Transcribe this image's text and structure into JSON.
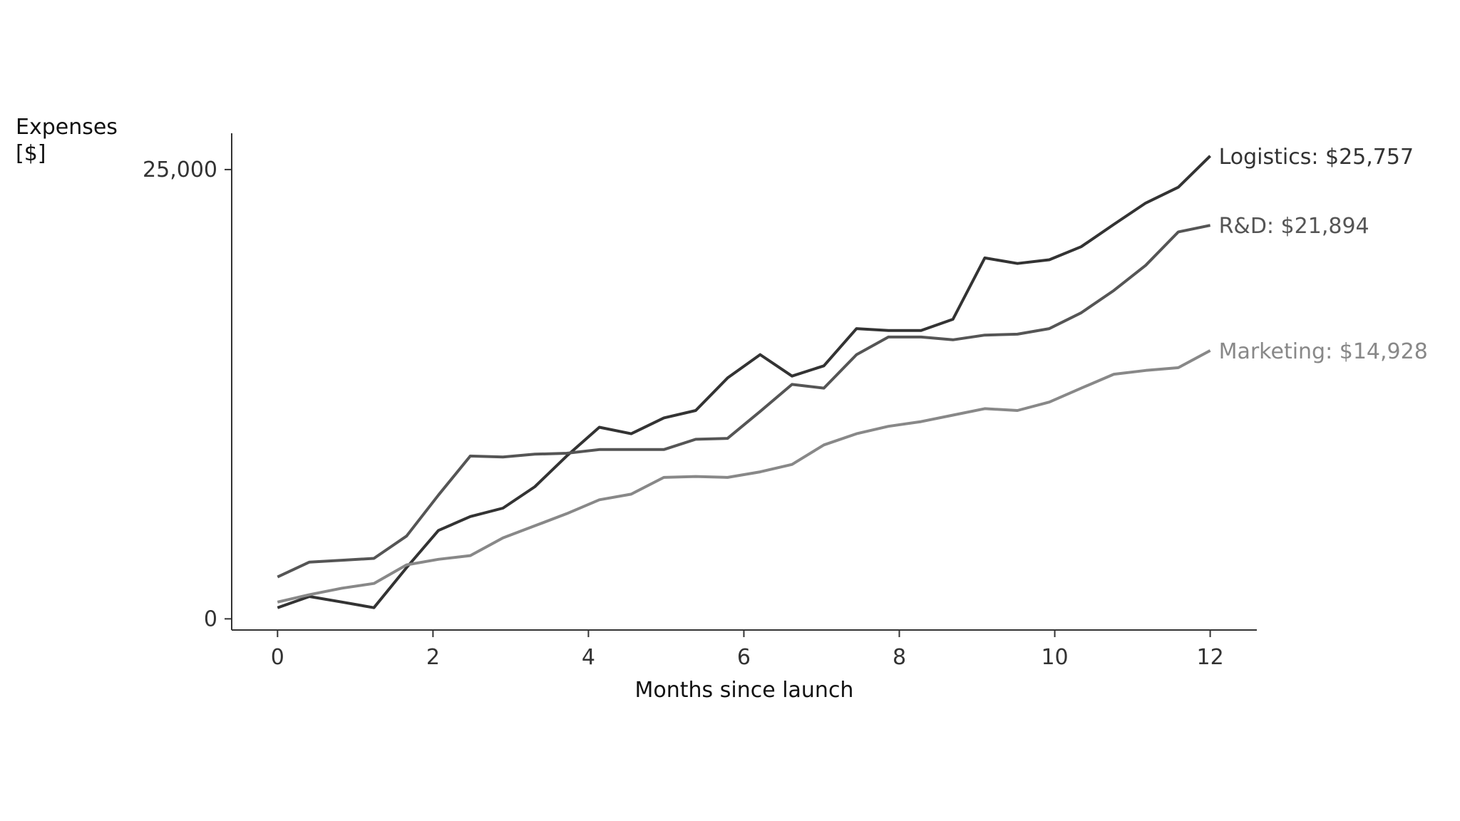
{
  "chart_data": {
    "type": "line",
    "x_label": "Months since launch",
    "y_label": "Expenses [$]",
    "x": [
      0,
      0.41,
      0.83,
      1.24,
      1.66,
      2.07,
      2.48,
      2.9,
      3.31,
      3.72,
      4.14,
      4.55,
      4.97,
      5.38,
      5.79,
      6.21,
      6.62,
      7.03,
      7.45,
      7.86,
      8.28,
      8.69,
      9.1,
      9.52,
      9.93,
      10.34,
      10.76,
      11.17,
      11.59,
      12
    ],
    "series": [
      {
        "name": "Logistics",
        "color": "#333333",
        "label": "Logistics: $25,757",
        "values": [
          621,
          1242,
          932,
          621,
          2847,
          4917,
          5694,
          6159,
          7350,
          9058,
          10663,
          10300,
          11180,
          11594,
          13406,
          14700,
          13510,
          14079,
          16149,
          16046,
          16046,
          16667,
          20083,
          19772,
          19979,
          20704,
          21946,
          23137,
          24017,
          25757
        ]
      },
      {
        "name": "R&D",
        "color": "#555555",
        "label": "R&D: $21,894",
        "values": [
          2329,
          3157,
          3261,
          3364,
          4607,
          6884,
          9058,
          9006,
          9162,
          9213,
          9420,
          9420,
          9420,
          9990,
          10041,
          11542,
          13044,
          12837,
          14700,
          15683,
          15683,
          15528,
          15787,
          15839,
          16149,
          17029,
          18271,
          19669,
          21532,
          21894
        ]
      },
      {
        "name": "Marketing",
        "color": "#888888",
        "label": "Marketing: $14,928",
        "values": [
          932,
          1346,
          1708,
          1967,
          3002,
          3313,
          3520,
          4503,
          5176,
          5849,
          6625,
          6936,
          7868,
          7919,
          7868,
          8178,
          8592,
          9679,
          10300,
          10714,
          10973,
          11335,
          11698,
          11594,
          12060,
          12836,
          13613,
          13820,
          13975,
          14928
        ]
      }
    ],
    "xlim": [
      -0.59,
      12.6
    ],
    "xticks": [
      0,
      2,
      4,
      6,
      8,
      10,
      12
    ],
    "ylim": [
      -621,
      27019
    ],
    "yticks": [
      0,
      {
        "value": 25000,
        "label": "25,000"
      }
    ],
    "grid": false
  }
}
